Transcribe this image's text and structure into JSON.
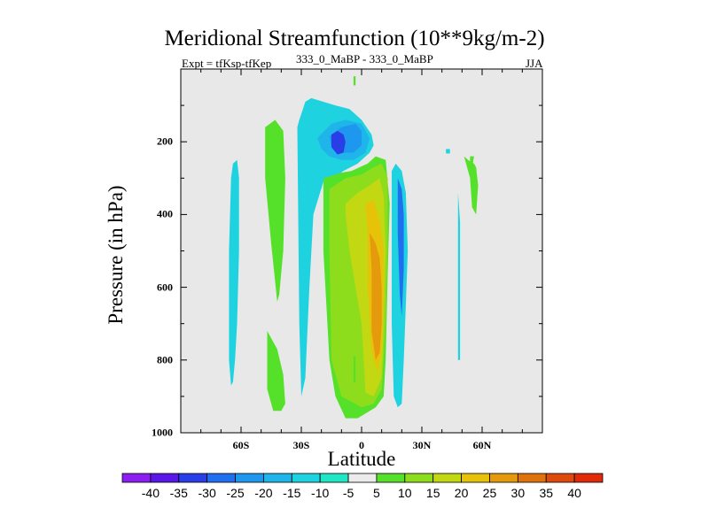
{
  "chart_data": {
    "type": "heatmap",
    "title": "Meridional Streamfunction (10**9kg/m-2)",
    "left_subtitle": "Expt = tfKsp-tfKep",
    "center_subtitle": "333_0_MaBP - 333_0_MaBP",
    "right_subtitle": "JJA",
    "xlabel": "Latitude",
    "ylabel": "Pressure (in hPa)",
    "xlim": [
      -90,
      90
    ],
    "ylim": [
      1000,
      0
    ],
    "x_ticks": [
      {
        "value": -60,
        "label": "60S"
      },
      {
        "value": -30,
        "label": "30S"
      },
      {
        "value": 0,
        "label": "0"
      },
      {
        "value": 30,
        "label": "30N"
      },
      {
        "value": 60,
        "label": "60N"
      }
    ],
    "y_ticks": [
      {
        "value": 200,
        "label": "200"
      },
      {
        "value": 400,
        "label": "400"
      },
      {
        "value": 600,
        "label": "600"
      },
      {
        "value": 800,
        "label": "800"
      },
      {
        "value": 1000,
        "label": "1000"
      }
    ],
    "colorbar": {
      "labels": [
        "-40",
        "-35",
        "-30",
        "-25",
        "-20",
        "-15",
        "-10",
        "-5",
        "5",
        "10",
        "15",
        "20",
        "25",
        "30",
        "35",
        "40"
      ],
      "colors": [
        "#8b1ef0",
        "#5a18e8",
        "#2a3ee8",
        "#1f6ff0",
        "#1e97ee",
        "#1fb5ea",
        "#1ed2e0",
        "#20e6c4",
        "#ebebeb",
        "#55e02a",
        "#8edd1c",
        "#c2d812",
        "#e6c208",
        "#e49a0c",
        "#e0720c",
        "#de4a0c",
        "#e02a0a"
      ]
    },
    "contours": [
      {
        "level": "-5 to -10",
        "color": "#1ed2e0",
        "lat": [
          -64,
          -62,
          -61,
          -61,
          -62,
          -63,
          -64,
          -65,
          -66,
          -66,
          -65
        ],
        "p": [
          260,
          250,
          300,
          500,
          700,
          800,
          860,
          870,
          800,
          500,
          300
        ]
      },
      {
        "level": "5 to 10",
        "color": "#55e02a",
        "lat": [
          -48,
          -43,
          -39,
          -38,
          -39,
          -41,
          -42,
          -45,
          -48,
          -48
        ],
        "p": [
          160,
          140,
          170,
          300,
          500,
          620,
          640,
          480,
          300,
          200
        ]
      },
      {
        "level": "5 to 10",
        "color": "#55e02a",
        "lat": [
          -47,
          -45,
          -42,
          -39,
          -38,
          -40,
          -44,
          -47,
          -47
        ],
        "p": [
          720,
          740,
          770,
          840,
          920,
          940,
          940,
          880,
          800
        ]
      },
      {
        "level": "-5 to -10",
        "color": "#1ed2e0",
        "lat": [
          -32,
          -31,
          -28,
          -25,
          -13,
          -6,
          0,
          5,
          6,
          4,
          -2,
          -9,
          -14,
          -19,
          -24,
          -26,
          -28,
          -30,
          -31
        ],
        "p": [
          160,
          140,
          90,
          80,
          100,
          110,
          140,
          180,
          210,
          230,
          260,
          280,
          300,
          310,
          400,
          600,
          850,
          900,
          700
        ]
      },
      {
        "level": "5 to 10",
        "color": "#55e02a",
        "lat": [
          -19,
          -10,
          -5,
          3,
          7,
          12,
          14,
          13,
          12,
          11,
          7,
          -2,
          -8,
          -13,
          -16,
          -19
        ],
        "p": [
          300,
          285,
          280,
          260,
          240,
          250,
          370,
          560,
          800,
          900,
          930,
          960,
          960,
          900,
          800,
          500
        ]
      },
      {
        "level": "10 to 15",
        "color": "#8edd1c",
        "lat": [
          -16,
          -8,
          0,
          6,
          10,
          13,
          13,
          12,
          10,
          6,
          0,
          -10,
          -15,
          -16
        ],
        "p": [
          330,
          300,
          290,
          270,
          260,
          300,
          500,
          700,
          880,
          920,
          930,
          900,
          800,
          500
        ]
      },
      {
        "level": "15 to 20",
        "color": "#c2d812",
        "lat": [
          -8,
          -2,
          4,
          9,
          11,
          12,
          11,
          10,
          6,
          2,
          0,
          -6,
          -8
        ],
        "p": [
          370,
          340,
          320,
          300,
          350,
          500,
          700,
          850,
          900,
          890,
          700,
          500,
          400
        ]
      },
      {
        "level": "20 to 25",
        "color": "#e6c208",
        "lat": [
          2,
          6,
          9,
          11,
          11,
          10,
          8,
          5,
          3,
          3
        ],
        "p": [
          370,
          360,
          420,
          500,
          650,
          780,
          830,
          780,
          600,
          450
        ]
      },
      {
        "level": "25 to 30",
        "color": "#e49a0c",
        "lat": [
          4,
          7,
          9,
          10,
          10,
          9,
          7,
          5,
          5
        ],
        "p": [
          450,
          480,
          520,
          600,
          700,
          780,
          800,
          720,
          550
        ]
      },
      {
        "level": "-10 to -15",
        "color": "#1fb5ea",
        "lat": [
          -22,
          -15,
          -8,
          0,
          4,
          2,
          -4,
          -10,
          -16,
          -20
        ],
        "p": [
          190,
          150,
          140,
          150,
          190,
          230,
          250,
          250,
          240,
          220
        ]
      },
      {
        "level": "-15 to -20",
        "color": "#1e97ee",
        "lat": [
          -16,
          -10,
          -3,
          0,
          0,
          -4,
          -10,
          -15
        ],
        "p": [
          185,
          160,
          150,
          170,
          210,
          230,
          230,
          215
        ]
      },
      {
        "level": "-20 to -25",
        "color": "#2a3ee8",
        "lat": [
          -15,
          -12,
          -9,
          -8,
          -9,
          -12,
          -15
        ],
        "p": [
          180,
          170,
          180,
          200,
          230,
          235,
          215
        ]
      },
      {
        "level": "-15 to -20",
        "color": "#1e97ee",
        "lat": [
          -4,
          -1,
          0,
          -2,
          -5
        ],
        "p": [
          190,
          185,
          200,
          215,
          205
        ]
      },
      {
        "level": "-5 to -10",
        "color": "#1ed2e0",
        "lat": [
          15,
          17,
          20,
          22,
          23,
          22,
          21,
          20,
          18,
          16,
          15,
          15
        ],
        "p": [
          280,
          260,
          280,
          340,
          500,
          650,
          800,
          920,
          930,
          900,
          700,
          450
        ]
      },
      {
        "level": "-10 to -15",
        "color": "#1f6ff0",
        "lat": [
          18,
          20,
          21,
          21,
          20,
          19,
          18
        ],
        "p": [
          300,
          330,
          400,
          550,
          680,
          620,
          450
        ]
      },
      {
        "level": "5 to 10",
        "color": "#55e02a",
        "lat": [
          51,
          53,
          56,
          57,
          58,
          57,
          55,
          54
        ],
        "p": [
          240,
          250,
          260,
          270,
          320,
          400,
          380,
          300
        ]
      },
      {
        "level": "5 to 10",
        "color": "#55e02a",
        "lat": [
          54,
          56,
          55,
          54
        ],
        "p": [
          240,
          240,
          270,
          260
        ]
      },
      {
        "level": "-5 to -10",
        "color": "#1ed2e0",
        "lat": [
          48,
          49,
          49,
          48,
          48
        ],
        "p": [
          340,
          420,
          800,
          800,
          420
        ]
      },
      {
        "level": "5 to 10",
        "color": "#55e02a",
        "lat": [
          -4,
          -3,
          -3,
          -4
        ],
        "p": [
          790,
          790,
          860,
          860
        ]
      },
      {
        "level": "-5 to -10",
        "color": "#1ed2e0",
        "lat": [
          42,
          44,
          44,
          42
        ],
        "p": [
          220,
          220,
          232,
          232
        ]
      },
      {
        "level": "5 to 10",
        "color": "#55e02a",
        "lat": [
          -4,
          -3,
          -3,
          -4
        ],
        "p": [
          20,
          20,
          45,
          45
        ]
      }
    ]
  }
}
